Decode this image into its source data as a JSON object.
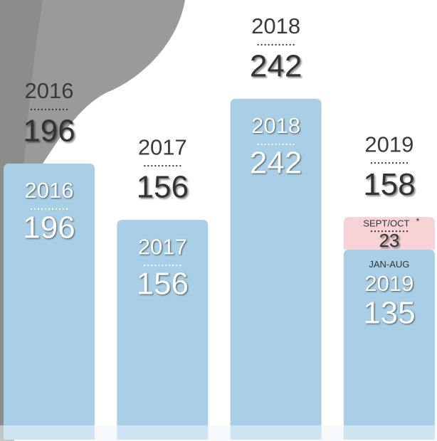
{
  "chart_data": {
    "type": "bar",
    "categories": [
      "2016",
      "2017",
      "2018",
      "2019"
    ],
    "series": [
      {
        "name": "JAN-AUG",
        "color": "#a9cfe6",
        "values": [
          196,
          156,
          242,
          135
        ]
      },
      {
        "name": "SEPT/OCT",
        "color": "#f7d3d6",
        "values": [
          null,
          null,
          null,
          23
        ]
      }
    ],
    "totals": [
      196,
      156,
      242,
      158
    ],
    "note_mark": "*"
  }
}
